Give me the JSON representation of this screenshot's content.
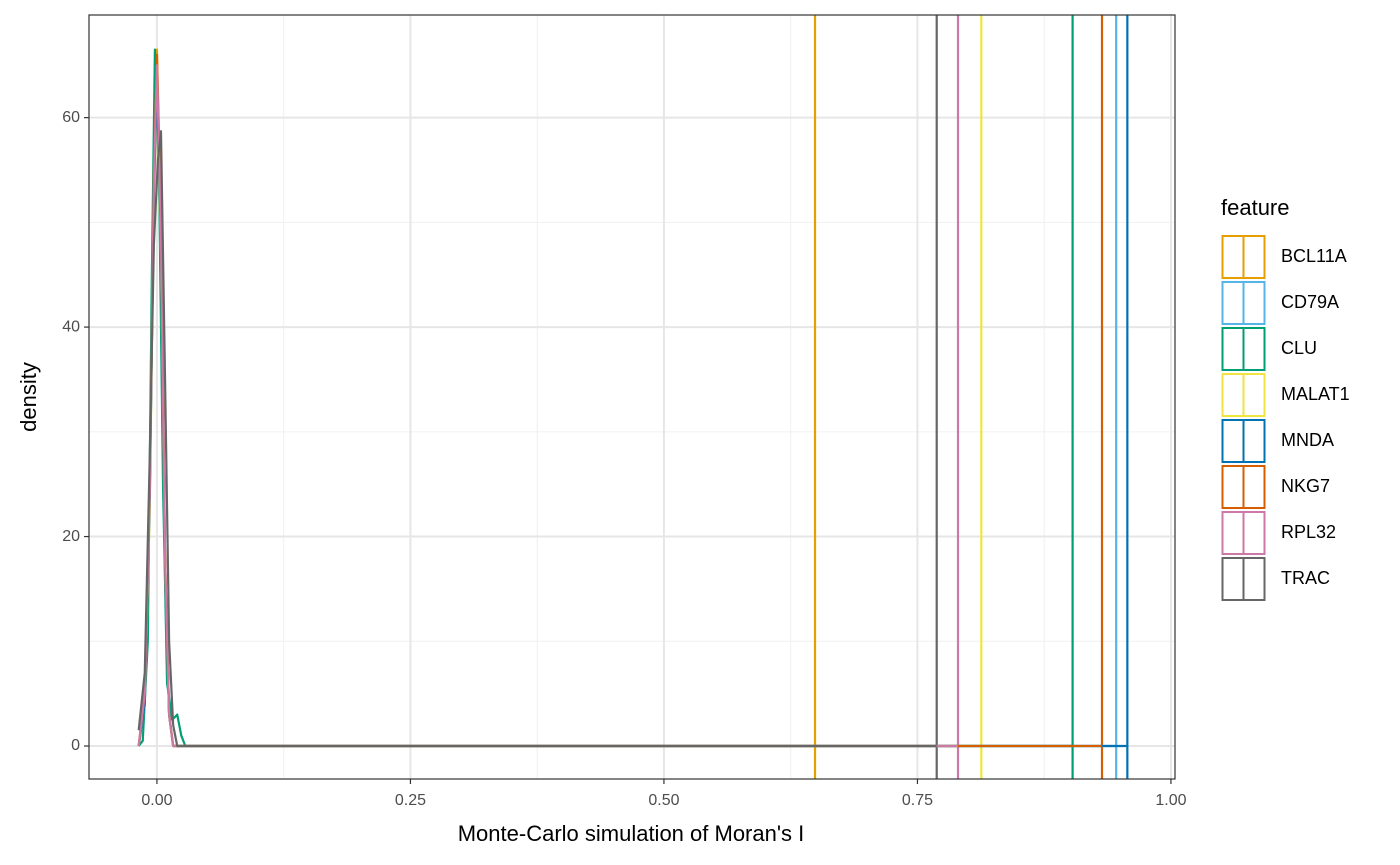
{
  "chart_data": {
    "type": "density",
    "x_label": "Monte-Carlo simulation of Moran's I",
    "y_label": "density",
    "legend_title": "feature",
    "xlim": [
      -0.067,
      1.004
    ],
    "ylim": [
      -3.15,
      69.8
    ],
    "xticks": [
      {
        "value": 0,
        "label": "0.00"
      },
      {
        "value": 0.25,
        "label": "0.25"
      },
      {
        "value": 0.5,
        "label": "0.50"
      },
      {
        "value": 0.75,
        "label": "0.75"
      },
      {
        "value": 1,
        "label": "1.00"
      }
    ],
    "yticks": [
      0,
      20,
      40,
      60
    ],
    "x_minor_grid": [
      0.125,
      0.375,
      0.625,
      0.875
    ],
    "y_minor_grid": [
      10,
      30,
      50
    ],
    "grid": true,
    "legend": "right",
    "series": [
      {
        "name": "BCL11A",
        "color": "#E69F00",
        "observed": 0.649,
        "x": [
          -0.018,
          -0.012,
          -0.007,
          -0.003,
          0,
          0.004,
          0.008,
          0.012,
          0.016,
          0.649
        ],
        "values": [
          0,
          5,
          25,
          55,
          66.5,
          50,
          18,
          3,
          0,
          0
        ]
      },
      {
        "name": "CD79A",
        "color": "#56B4E9",
        "observed": 0.946,
        "x": [
          -0.018,
          -0.012,
          -0.007,
          -0.003,
          0,
          0.004,
          0.008,
          0.012,
          0.016,
          0.946
        ],
        "values": [
          0,
          4,
          24,
          54,
          64,
          48,
          17,
          3,
          0,
          0
        ]
      },
      {
        "name": "CLU",
        "color": "#009E73",
        "observed": 0.903,
        "x": [
          -0.018,
          -0.014,
          -0.009,
          -0.005,
          -0.002,
          0.002,
          0.006,
          0.01,
          0.015,
          0.02,
          0.024,
          0.028,
          0.903
        ],
        "values": [
          0,
          0.5,
          10,
          45,
          66.5,
          55,
          25,
          6,
          2.5,
          3,
          1,
          0,
          0
        ]
      },
      {
        "name": "MALAT1",
        "color": "#F0E442",
        "observed": 0.813,
        "x": [
          -0.018,
          -0.012,
          -0.007,
          -0.003,
          0,
          0.004,
          0.008,
          0.012,
          0.016,
          0.813
        ],
        "values": [
          0,
          4,
          23,
          52,
          62,
          47,
          17,
          3,
          0,
          0
        ]
      },
      {
        "name": "MNDA",
        "color": "#0072B2",
        "observed": 0.957,
        "x": [
          -0.018,
          -0.012,
          -0.007,
          -0.003,
          0,
          0.004,
          0.008,
          0.012,
          0.016,
          0.957
        ],
        "values": [
          0,
          4,
          24,
          53,
          63,
          48,
          17,
          3,
          0,
          0
        ]
      },
      {
        "name": "NKG7",
        "color": "#D55E00",
        "observed": 0.932,
        "x": [
          -0.018,
          -0.012,
          -0.007,
          -0.003,
          0,
          0.004,
          0.008,
          0.012,
          0.016,
          0.932
        ],
        "values": [
          0,
          5,
          25,
          55,
          66,
          50,
          18,
          3,
          0,
          0
        ]
      },
      {
        "name": "RPL32",
        "color": "#CC79A7",
        "observed": 0.79,
        "x": [
          -0.018,
          -0.012,
          -0.007,
          -0.003,
          0,
          0.004,
          0.008,
          0.012,
          0.016,
          0.79
        ],
        "values": [
          0,
          5,
          25,
          54,
          65,
          49,
          18,
          3,
          0,
          0
        ]
      },
      {
        "name": "TRAC",
        "color": "#666666",
        "observed": 0.769,
        "x": [
          -0.018,
          -0.012,
          -0.007,
          -0.003,
          0.001,
          0.004,
          0.008,
          0.012,
          0.016,
          0.02,
          0.769
        ],
        "values": [
          1.5,
          7,
          28,
          48,
          56,
          58.7,
          35,
          10,
          2,
          0,
          0
        ]
      }
    ]
  }
}
